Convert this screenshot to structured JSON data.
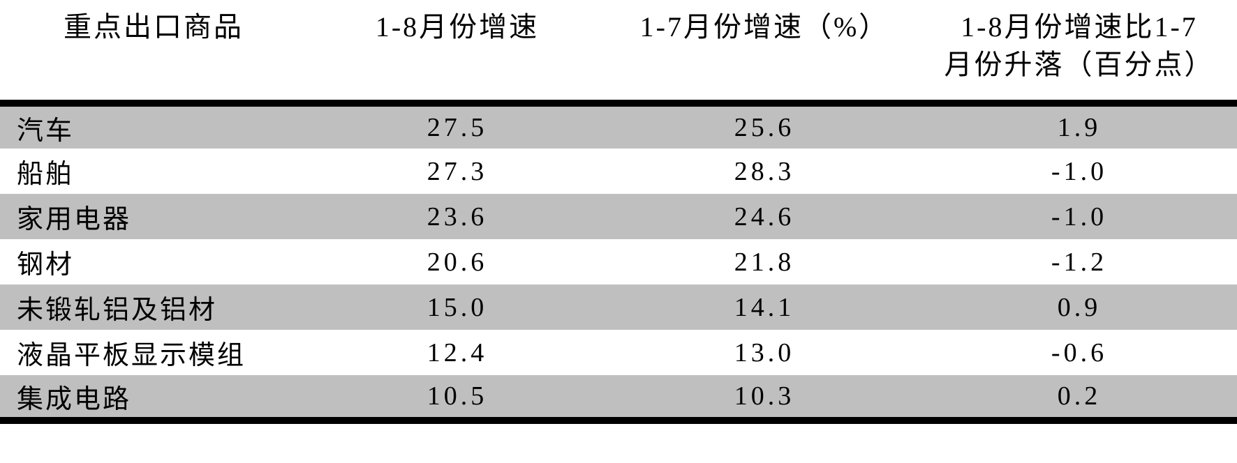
{
  "table": {
    "header": {
      "col1": "重点出口商品",
      "col2": "1-8月份增速",
      "col3": "1-7月份增速（%）",
      "col4_line1": "1-8月份增速比1-7",
      "col4_line2": "月份升落（百分点）"
    },
    "rows": [
      {
        "name": "汽车",
        "aug": "27.5",
        "jul": "25.6",
        "diff": "1.9"
      },
      {
        "name": "船舶",
        "aug": "27.3",
        "jul": "28.3",
        "diff": "-1.0"
      },
      {
        "name": "家用电器",
        "aug": "23.6",
        "jul": "24.6",
        "diff": "-1.0"
      },
      {
        "name": "钢材",
        "aug": "20.6",
        "jul": "21.8",
        "diff": "-1.2"
      },
      {
        "name": "未锻轧铝及铝材",
        "aug": "15.0",
        "jul": "14.1",
        "diff": "0.9"
      },
      {
        "name": "液晶平板显示模组",
        "aug": "12.4",
        "jul": "13.0",
        "diff": "-0.6"
      },
      {
        "name": "集成电路",
        "aug": "10.5",
        "jul": "10.3",
        "diff": "0.2"
      }
    ]
  },
  "colors": {
    "row_shading": "#bfbfbf",
    "rule": "#000000",
    "background": "#ffffff"
  },
  "chart_data": {
    "type": "table",
    "title": "",
    "columns": [
      "重点出口商品",
      "1-8月份增速",
      "1-7月份增速（%）",
      "1-8月份增速比1-7月份升落（百分点）"
    ],
    "rows": [
      [
        "汽车",
        27.5,
        25.6,
        1.9
      ],
      [
        "船舶",
        27.3,
        28.3,
        -1.0
      ],
      [
        "家用电器",
        23.6,
        24.6,
        -1.0
      ],
      [
        "钢材",
        20.6,
        21.8,
        -1.2
      ],
      [
        "未锻轧铝及铝材",
        15.0,
        14.1,
        0.9
      ],
      [
        "液晶平板显示模组",
        12.4,
        13.0,
        -0.6
      ],
      [
        "集成电路",
        10.5,
        10.3,
        0.2
      ]
    ]
  }
}
